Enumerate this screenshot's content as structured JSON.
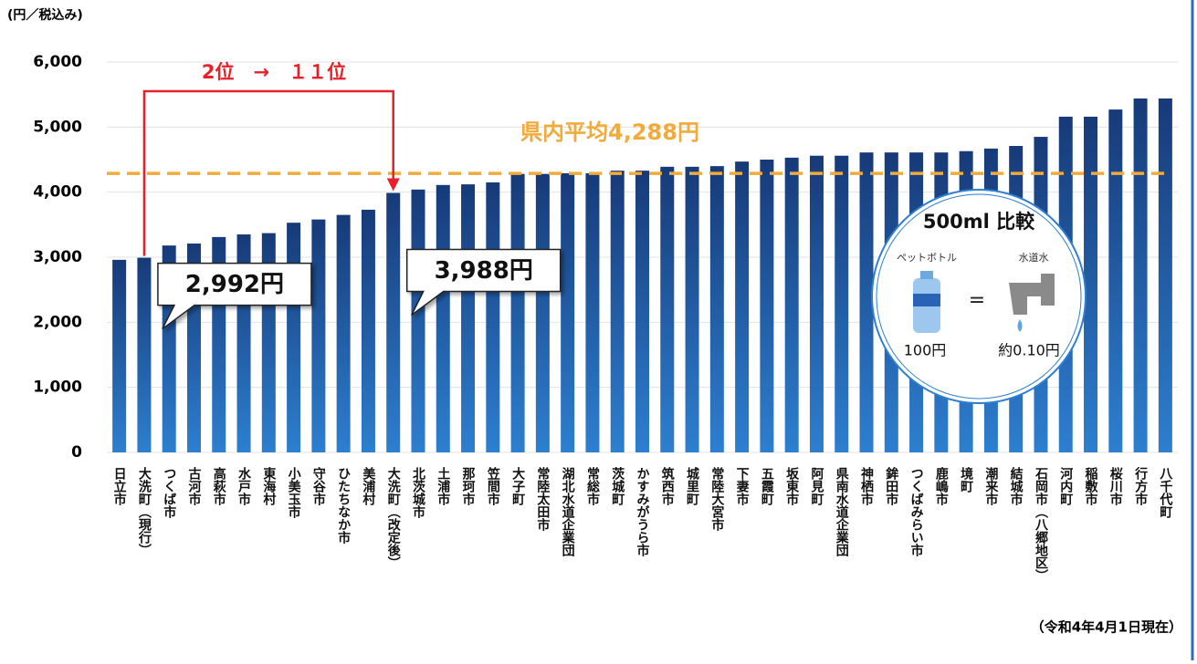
{
  "chart_data": {
    "type": "bar",
    "unit_label": "(円／税込み)",
    "footnote": "（令和4年4月1日現在）",
    "rank_change": "2位　→　１１位",
    "categories": [
      "日立市",
      "大洗町（現行）",
      "つくば市",
      "古河市",
      "高萩市",
      "水戸市",
      "東海村",
      "小美玉市",
      "守谷市",
      "ひたちなか市",
      "美浦村",
      "大洗町（改定後）",
      "北茨城市",
      "土浦市",
      "那珂市",
      "笠間市",
      "大子町",
      "常陸太田市",
      "湖北水道企業団",
      "常総市",
      "茨城町",
      "かすみがうら市",
      "筑西市",
      "城里町",
      "常陸大宮市",
      "下妻市",
      "五霞町",
      "坂東市",
      "阿見町",
      "県南水道企業団",
      "神栖市",
      "鉾田市",
      "つくばみらい市",
      "鹿嶋市",
      "境町",
      "潮来市",
      "結城市",
      "石岡市（八郷地区）",
      "河内町",
      "稲敷市",
      "桜川市",
      "行方市",
      "八千代町"
    ],
    "values": [
      2960,
      2992,
      3180,
      3210,
      3310,
      3350,
      3370,
      3530,
      3580,
      3650,
      3730,
      3988,
      4040,
      4110,
      4120,
      4150,
      4280,
      4280,
      4290,
      4290,
      4330,
      4330,
      4390,
      4390,
      4400,
      4470,
      4500,
      4530,
      4560,
      4560,
      4610,
      4610,
      4610,
      4610,
      4630,
      4670,
      4710,
      4850,
      5160,
      5160,
      5270,
      5440,
      5440
    ],
    "value_labels": [
      null,
      "2,992円",
      null,
      null,
      null,
      null,
      null,
      null,
      null,
      null,
      null,
      "3,988円",
      null,
      null,
      null,
      null,
      null,
      null,
      null,
      null,
      null,
      null,
      null,
      null,
      null,
      null,
      null,
      null,
      null,
      null,
      null,
      null,
      null,
      null,
      null,
      null,
      null,
      null,
      null,
      null,
      null,
      null,
      null
    ],
    "color": "#1f5ca8",
    "average": {
      "value": 4288,
      "label": "県内平均4,288円",
      "color": "#f2aa3a"
    },
    "ylim": [
      0,
      6000
    ],
    "yticks": [
      0,
      {
        "value": 1000,
        "label": "1,000"
      },
      {
        "value": 2000,
        "label": "2,000"
      },
      {
        "value": 3000,
        "label": "3,000"
      },
      {
        "value": 4000,
        "label": "4,000"
      },
      {
        "value": 5000,
        "label": "5,000"
      },
      {
        "value": 6000,
        "label": "6,000"
      }
    ],
    "grid": true,
    "inset": {
      "title": "500ml 比較",
      "left_label": "ペットボトル",
      "right_label": "水道水",
      "equals": "=",
      "left_price": "100円",
      "right_price": "約0.10円"
    }
  }
}
